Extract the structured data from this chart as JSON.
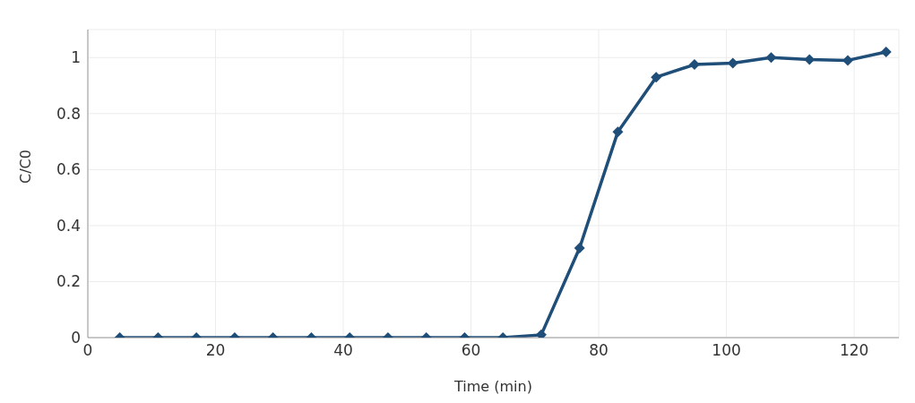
{
  "chart_data": {
    "type": "line",
    "xlabel": "Time (min)",
    "ylabel": "C/C0",
    "x": [
      5,
      11,
      17,
      23,
      29,
      35,
      41,
      47,
      53,
      59,
      65,
      71,
      77,
      83,
      89,
      95,
      101,
      107,
      113,
      119,
      125
    ],
    "series": [
      {
        "color": "#1f4e79",
        "values": [
          0,
          0,
          0,
          0,
          0,
          0,
          0,
          0,
          0,
          0,
          0,
          0.01,
          0.32,
          0.735,
          0.93,
          0.975,
          0.98,
          1.0,
          0.993,
          0.99,
          1.02
        ]
      }
    ],
    "xlim": [
      0,
      127
    ],
    "xticks": [
      0,
      20,
      40,
      60,
      80,
      100,
      120
    ],
    "ylim": [
      0,
      1.1
    ],
    "yticks": [
      0,
      0.2,
      0.4,
      0.6,
      0.8,
      1
    ],
    "grid": true,
    "marker": "diamond",
    "line_style": "solid",
    "legend": false
  }
}
